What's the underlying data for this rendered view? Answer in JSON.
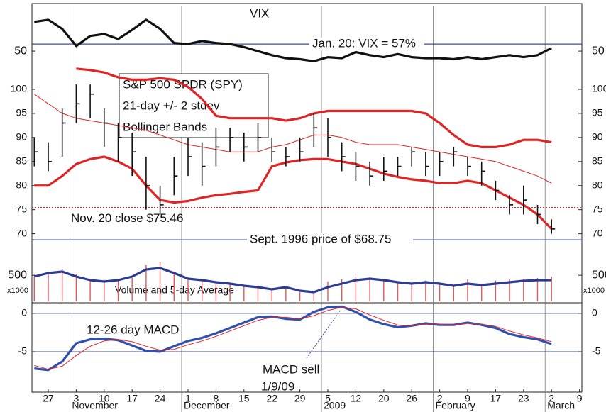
{
  "chart_data": [
    {
      "type": "line",
      "title": "VIX",
      "color": "#111111",
      "values": [
        79,
        81,
        72,
        55,
        65,
        67,
        62,
        71,
        81,
        72,
        58,
        57,
        60,
        58,
        57,
        54,
        50,
        46,
        43,
        42,
        40,
        44,
        43,
        49,
        46,
        44,
        47,
        44,
        43,
        43,
        42,
        44,
        42,
        44,
        46,
        44,
        46,
        53,
        null,
        null
      ],
      "ylim": [
        36,
        95
      ],
      "yticks": [
        50
      ],
      "references": [
        {
          "value": 57,
          "label": "Jan. 20: VIX = 57%",
          "color": "#3c4ca0"
        }
      ]
    },
    {
      "type": "hlc",
      "text_box": [
        "S&P 500 SPDR (SPY)",
        "21-day +/- 2 stdev",
        "Bollinger Bands"
      ],
      "color": "#111111",
      "high": [
        90,
        89,
        96,
        101,
        101,
        96,
        93,
        91,
        86,
        80,
        86,
        90,
        89,
        92,
        92,
        91,
        93,
        90,
        88,
        90,
        95,
        94,
        89,
        87,
        85,
        86,
        86,
        88,
        87,
        87,
        88,
        86,
        85,
        81,
        78,
        80,
        76,
        73,
        null,
        null
      ],
      "low": [
        84,
        83,
        86,
        93,
        94,
        88,
        85,
        82,
        75,
        74,
        78,
        82,
        80,
        84,
        87,
        85,
        87,
        85,
        84,
        85,
        88,
        86,
        83,
        81,
        80,
        81,
        82,
        84,
        82,
        82,
        84,
        82,
        80,
        77,
        74,
        74,
        72,
        70,
        null,
        null
      ],
      "close": [
        87,
        85,
        93,
        97,
        99,
        93,
        90,
        87,
        80,
        76,
        82,
        86,
        84,
        88,
        90,
        88,
        90,
        87,
        86,
        87,
        92,
        90,
        86,
        84,
        82,
        83,
        84,
        87,
        84,
        85,
        87,
        84,
        83,
        79,
        76,
        77,
        74,
        71,
        null,
        null
      ],
      "bands": [
        {
          "color": "#e02424",
          "style": "thick",
          "values": [
            null,
            null,
            null,
            104.3,
            104,
            103.5,
            102.5,
            102,
            102,
            102.3,
            102,
            100.5,
            98,
            94.5,
            94,
            94,
            94,
            94,
            93.5,
            94,
            95,
            95.5,
            95.5,
            95.5,
            95.5,
            95.5,
            95.5,
            95.5,
            95,
            93,
            90.5,
            88.5,
            88,
            88,
            88.5,
            89.5,
            89.5,
            89,
            null,
            null
          ]
        },
        {
          "color": "#e02424",
          "style": "thin",
          "values": [
            99,
            97,
            95,
            94,
            93.5,
            93,
            92.5,
            92,
            91.5,
            90.5,
            89.5,
            88.5,
            88,
            87.5,
            87,
            87,
            87,
            88,
            88.5,
            89.5,
            90.5,
            90.5,
            90,
            89,
            88.5,
            88.5,
            88.5,
            88,
            87.5,
            87,
            86.5,
            86,
            85.5,
            85,
            84,
            83,
            82,
            80.5,
            null,
            null
          ]
        },
        {
          "color": "#e02424",
          "style": "thick",
          "values": [
            80,
            80,
            82,
            84.5,
            85.5,
            86,
            85,
            83.5,
            80,
            77,
            76.5,
            76.8,
            77.5,
            78,
            78.3,
            78.7,
            79,
            84,
            84.8,
            85.3,
            85.5,
            85.5,
            85,
            84.5,
            83.5,
            82.5,
            81.8,
            81.3,
            81,
            80.5,
            80.5,
            81,
            80.5,
            79,
            77.5,
            76,
            74,
            71,
            null,
            null
          ]
        }
      ],
      "ylim": [
        67,
        105
      ],
      "yticks": [
        70,
        75,
        80,
        85,
        90,
        95,
        100
      ],
      "references": [
        {
          "value": 75.46,
          "label": "Nov. 20 close $75.46",
          "color": "#e02424"
        },
        {
          "value": 68.75,
          "label": "Sept. 1996 price of $68.75",
          "color": "#3c4ca0"
        }
      ]
    },
    {
      "type": "bar",
      "annotation": "Volume and 5-day Average",
      "unit_label": "x1000",
      "color": "#e05a5a",
      "values": [
        480,
        560,
        620,
        520,
        430,
        400,
        390,
        450,
        700,
        760,
        520,
        410,
        380,
        350,
        330,
        300,
        270,
        220,
        260,
        180,
        170,
        380,
        420,
        470,
        430,
        400,
        360,
        330,
        400,
        340,
        290,
        420,
        330,
        400,
        420,
        430,
        450,
        470,
        null,
        null
      ],
      "series": [
        {
          "color": "#2c3c94",
          "style": "thick",
          "values": [
            475,
            542,
            569,
            475,
            407,
            380,
            407,
            475,
            610,
            637,
            542,
            434,
            407,
            366,
            339,
            298,
            271,
            230,
            271,
            203,
            176,
            271,
            339,
            407,
            434,
            407,
            366,
            339,
            366,
            339,
            298,
            339,
            312,
            339,
            366,
            393,
            407,
            407,
            null,
            null
          ]
        }
      ],
      "ylim": [
        0,
        800
      ],
      "yticks": [
        500
      ]
    },
    {
      "type": "line",
      "annotations": [
        "12-26 day MACD",
        "MACD sell",
        "1/9/09"
      ],
      "series": [
        {
          "color": "#3050b0",
          "style": "thick",
          "values": [
            -7.2,
            -7.4,
            -6.3,
            -3.9,
            -3.4,
            -3.3,
            -3.5,
            -4.2,
            -4.9,
            -5.0,
            -4.3,
            -3.6,
            -3.2,
            -2.6,
            -1.9,
            -1.2,
            -0.5,
            -0.4,
            -0.7,
            -0.8,
            0.2,
            0.8,
            0.9,
            0.2,
            -0.8,
            -1.4,
            -1.8,
            -1.6,
            -1.3,
            -1.5,
            -1.5,
            -1.2,
            -1.5,
            -1.9,
            -2.7,
            -3.1,
            -3.4,
            -4.0,
            null,
            null
          ]
        },
        {
          "color": "#e02424",
          "style": "thin",
          "values": [
            -6.8,
            -7.3,
            -6.9,
            -5.5,
            -4.3,
            -3.6,
            -3.4,
            -3.7,
            -4.3,
            -4.8,
            -4.7,
            -4.1,
            -3.6,
            -3.0,
            -2.3,
            -1.6,
            -0.9,
            -0.5,
            -0.5,
            -0.7,
            -0.3,
            0.4,
            0.8,
            0.6,
            -0.2,
            -0.9,
            -1.5,
            -1.6,
            -1.4,
            -1.4,
            -1.5,
            -1.3,
            -1.4,
            -1.7,
            -2.3,
            -2.8,
            -3.2,
            -3.7,
            null,
            null
          ]
        }
      ],
      "ylim": [
        -10.3,
        1.3
      ],
      "yticks": [
        0,
        -5
      ],
      "categories": [
        null,
        "27",
        null,
        "3",
        null,
        "10",
        null,
        "17",
        null,
        "24",
        null,
        "1",
        null,
        "8",
        null,
        "15",
        null,
        "22",
        null,
        "29",
        null,
        "5",
        null,
        "12",
        null,
        "20",
        null,
        "26",
        null,
        "2",
        null,
        "9",
        null,
        "17",
        null,
        "23",
        null,
        "2",
        null,
        "9"
      ],
      "month_categories": [
        null,
        null,
        null,
        "November",
        null,
        null,
        null,
        null,
        null,
        null,
        null,
        "December",
        null,
        null,
        null,
        null,
        null,
        null,
        null,
        null,
        null,
        "2009",
        null,
        null,
        null,
        null,
        null,
        null,
        null,
        "February",
        null,
        null,
        null,
        null,
        null,
        null,
        null,
        "March",
        null,
        null
      ]
    }
  ]
}
